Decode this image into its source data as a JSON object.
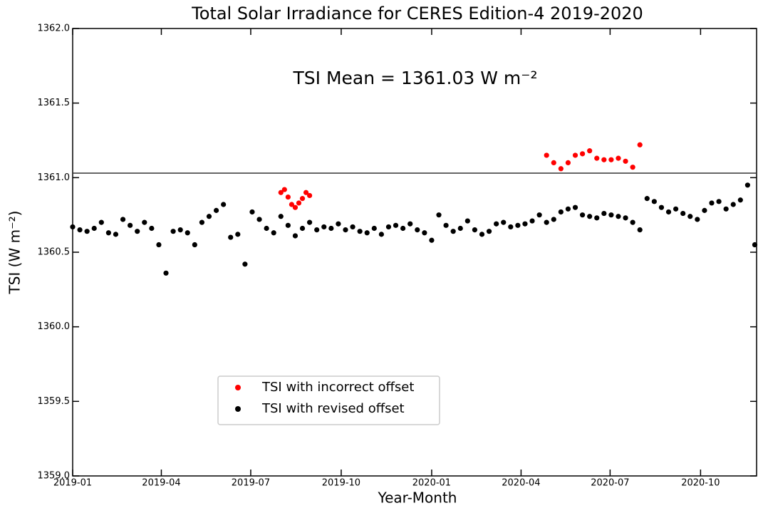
{
  "chart_data": {
    "type": "scatter",
    "title": "Total Solar Irradiance for CERES Edition-4 2019-2020",
    "annotation": "TSI Mean = 1361.03 W m⁻²",
    "hline": 1361.03,
    "x_label": "Year-Month",
    "y_label": "TSI (W m⁻²)",
    "xlim": [
      2019.0,
      2020.905
    ],
    "ylim": [
      1359.0,
      1362.0
    ],
    "xticks": [
      {
        "value": 2019.0,
        "label": "2019-01"
      },
      {
        "value": 2019.247,
        "label": "2019-04"
      },
      {
        "value": 2019.496,
        "label": "2019-07"
      },
      {
        "value": 2019.748,
        "label": "2019-10"
      },
      {
        "value": 2020.0,
        "label": "2020-01"
      },
      {
        "value": 2020.249,
        "label": "2020-04"
      },
      {
        "value": 2020.497,
        "label": "2020-07"
      },
      {
        "value": 2020.749,
        "label": "2020-10"
      }
    ],
    "yticks": [
      {
        "value": 1359.0,
        "label": "1359.0"
      },
      {
        "value": 1359.5,
        "label": "1359.5"
      },
      {
        "value": 1360.0,
        "label": "1360.0"
      },
      {
        "value": 1360.5,
        "label": "1360.5"
      },
      {
        "value": 1361.0,
        "label": "1361.0"
      },
      {
        "value": 1361.5,
        "label": "1361.5"
      },
      {
        "value": 1362.0,
        "label": "1362.0"
      }
    ],
    "legend": "lower left",
    "series": [
      {
        "name": "TSI with incorrect offset",
        "color": "#ff0000",
        "x": [
          2019.58,
          2019.59,
          2019.6,
          2019.61,
          2019.62,
          2019.63,
          2019.64,
          2019.65,
          2019.66,
          2020.32,
          2020.34,
          2020.36,
          2020.38,
          2020.4,
          2020.42,
          2020.44,
          2020.46,
          2020.48,
          2020.5,
          2020.52,
          2020.54,
          2020.56,
          2020.58
        ],
        "values": [
          1360.9,
          1360.92,
          1360.87,
          1360.82,
          1360.8,
          1360.83,
          1360.86,
          1360.9,
          1360.88,
          1361.15,
          1361.1,
          1361.06,
          1361.1,
          1361.15,
          1361.16,
          1361.18,
          1361.13,
          1361.12,
          1361.12,
          1361.13,
          1361.11,
          1361.07,
          1361.22
        ]
      },
      {
        "name": "TSI with revised offset",
        "color": "#000000",
        "x": [
          2019.0,
          2019.02,
          2019.04,
          2019.06,
          2019.08,
          2019.1,
          2019.12,
          2019.14,
          2019.16,
          2019.18,
          2019.2,
          2019.22,
          2019.24,
          2019.26,
          2019.28,
          2019.3,
          2019.32,
          2019.34,
          2019.36,
          2019.38,
          2019.4,
          2019.42,
          2019.44,
          2019.46,
          2019.48,
          2019.5,
          2019.52,
          2019.54,
          2019.56,
          2019.58,
          2019.6,
          2019.62,
          2019.64,
          2019.66,
          2019.68,
          2019.7,
          2019.72,
          2019.74,
          2019.76,
          2019.78,
          2019.8,
          2019.82,
          2019.84,
          2019.86,
          2019.88,
          2019.9,
          2019.92,
          2019.94,
          2019.96,
          2019.98,
          2020.0,
          2020.02,
          2020.04,
          2020.06,
          2020.08,
          2020.1,
          2020.12,
          2020.14,
          2020.16,
          2020.18,
          2020.2,
          2020.22,
          2020.24,
          2020.26,
          2020.28,
          2020.3,
          2020.32,
          2020.34,
          2020.36,
          2020.38,
          2020.4,
          2020.42,
          2020.44,
          2020.46,
          2020.48,
          2020.5,
          2020.52,
          2020.54,
          2020.56,
          2020.58,
          2020.6,
          2020.62,
          2020.64,
          2020.66,
          2020.68,
          2020.7,
          2020.72,
          2020.74,
          2020.76,
          2020.78,
          2020.8,
          2020.82,
          2020.84,
          2020.86,
          2020.88,
          2020.9
        ],
        "values": [
          1360.67,
          1360.65,
          1360.64,
          1360.66,
          1360.7,
          1360.63,
          1360.62,
          1360.72,
          1360.68,
          1360.64,
          1360.7,
          1360.66,
          1360.55,
          1360.36,
          1360.64,
          1360.65,
          1360.63,
          1360.55,
          1360.7,
          1360.74,
          1360.78,
          1360.82,
          1360.6,
          1360.62,
          1360.42,
          1360.77,
          1360.72,
          1360.66,
          1360.63,
          1360.74,
          1360.68,
          1360.61,
          1360.66,
          1360.7,
          1360.65,
          1360.67,
          1360.66,
          1360.69,
          1360.65,
          1360.67,
          1360.64,
          1360.63,
          1360.66,
          1360.62,
          1360.67,
          1360.68,
          1360.66,
          1360.69,
          1360.65,
          1360.63,
          1360.58,
          1360.75,
          1360.68,
          1360.64,
          1360.66,
          1360.71,
          1360.65,
          1360.62,
          1360.64,
          1360.69,
          1360.7,
          1360.67,
          1360.68,
          1360.69,
          1360.71,
          1360.75,
          1360.7,
          1360.72,
          1360.77,
          1360.79,
          1360.8,
          1360.75,
          1360.74,
          1360.73,
          1360.76,
          1360.75,
          1360.74,
          1360.73,
          1360.7,
          1360.65,
          1360.86,
          1360.84,
          1360.8,
          1360.77,
          1360.79,
          1360.76,
          1360.74,
          1360.72,
          1360.78,
          1360.83,
          1360.84,
          1360.79,
          1360.82,
          1360.85,
          1360.95,
          1360.55
        ]
      }
    ]
  }
}
